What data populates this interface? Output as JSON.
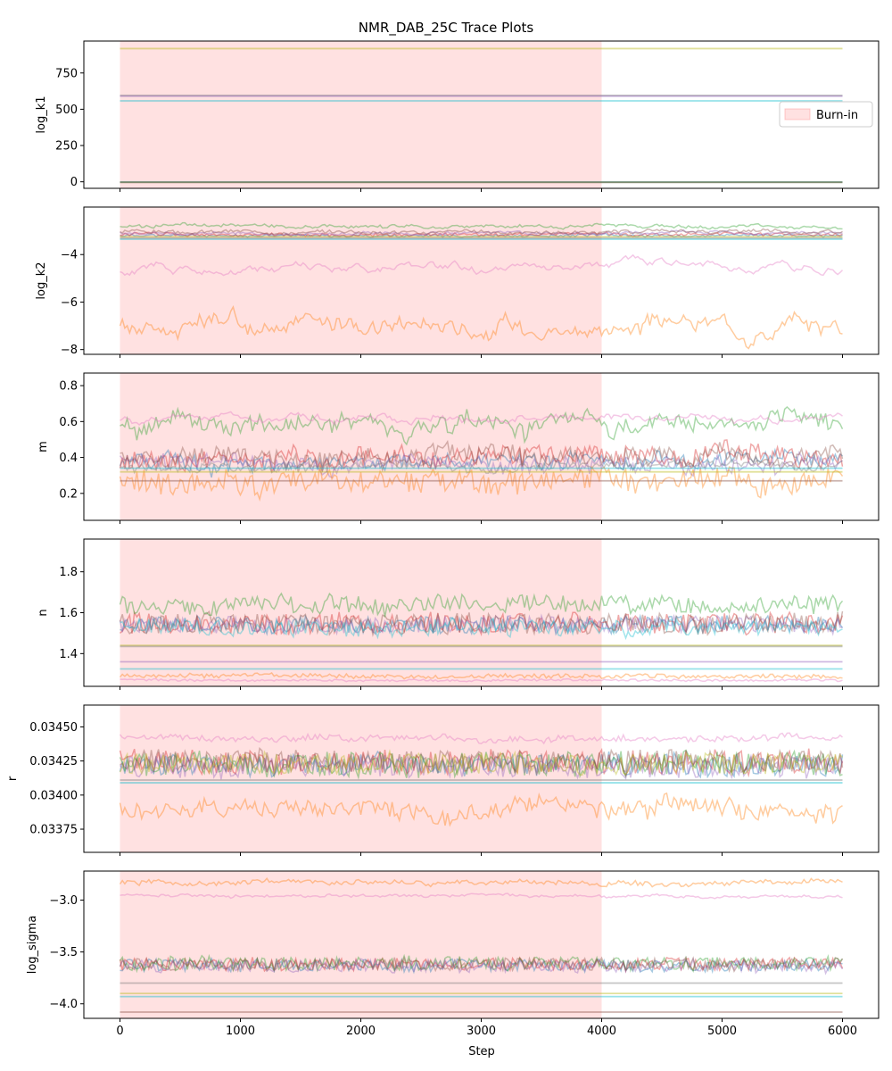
{
  "chart_data": {
    "type": "line",
    "title": "NMR_DAB_25C Trace Plots",
    "xlabel": "Step",
    "x_range": [
      0,
      6000
    ],
    "xlim": [
      -300,
      6300
    ],
    "x_ticks": [
      0,
      1000,
      2000,
      3000,
      4000,
      5000,
      6000
    ],
    "x_tick_labels": [
      "0",
      "1000",
      "2000",
      "3000",
      "4000",
      "5000",
      "6000"
    ],
    "burn_in": {
      "start": 0,
      "end": 4000,
      "label": "Burn-in",
      "color": "#ff9a9a"
    },
    "legend": {
      "placement": "right-center of first panel",
      "entries": [
        "Burn-in"
      ]
    },
    "walker_colors": [
      "#1f77b4",
      "#ff7f0e",
      "#2ca02c",
      "#d62728",
      "#9467bd",
      "#8c564b",
      "#e377c2",
      "#7f7f7f",
      "#bcbd22",
      "#17becf"
    ],
    "panels": [
      {
        "name": "log_k1",
        "ylabel": "log_k1",
        "ylim": [
          -45,
          970
        ],
        "y_ticks": [
          0,
          250,
          500,
          750
        ],
        "y_tick_labels": [
          "0",
          "250",
          "500",
          "750"
        ],
        "flat": [
          {
            "value": 918,
            "color": "#bcbd22"
          },
          {
            "value": 595,
            "color": "#7f7f7f"
          },
          {
            "value": 590,
            "color": "#9467bd"
          },
          {
            "value": 558,
            "color": "#17becf"
          },
          {
            "value": -2,
            "color": "#1f77b4"
          },
          {
            "value": -3,
            "color": "#2ca02c"
          },
          {
            "value": -4,
            "color": "#8c564b"
          }
        ],
        "noisy": []
      },
      {
        "name": "log_k2",
        "ylabel": "log_k2",
        "ylim": [
          -8.2,
          -2.0
        ],
        "y_ticks": [
          -8,
          -6,
          -4
        ],
        "y_tick_labels": [
          "−8",
          "−6",
          "−4"
        ],
        "flat": [
          {
            "value": -3.35,
            "color": "#17becf"
          },
          {
            "value": -3.3,
            "color": "#7f7f7f"
          },
          {
            "value": -3.25,
            "color": "#bcbd22"
          }
        ],
        "noisy": [
          {
            "color": "#1f77b4",
            "mean": -3.2,
            "amp": 0.05,
            "spread": 0.08,
            "seed": 11
          },
          {
            "color": "#d62728",
            "mean": -3.15,
            "amp": 0.06,
            "spread": 0.1,
            "seed": 12
          },
          {
            "color": "#9467bd",
            "mean": -3.1,
            "amp": 0.05,
            "spread": 0.1,
            "seed": 13
          },
          {
            "color": "#8c564b",
            "mean": -3.05,
            "amp": 0.06,
            "spread": 0.15,
            "seed": 14
          },
          {
            "color": "#2ca02c",
            "mean": -2.8,
            "amp": 0.05,
            "spread": 0.15,
            "seed": 15
          },
          {
            "color": "#e377c2",
            "mean": -4.6,
            "amp": 0.03,
            "spread": 0.6,
            "seed": 16
          },
          {
            "color": "#ff7f0e",
            "mean": -7.0,
            "amp": 0.2,
            "spread": 0.9,
            "seed": 17
          }
        ]
      },
      {
        "name": "m",
        "ylabel": "m",
        "ylim": [
          0.05,
          0.87
        ],
        "y_ticks": [
          0.2,
          0.4,
          0.6,
          0.8
        ],
        "y_tick_labels": [
          "0.2",
          "0.4",
          "0.6",
          "0.8"
        ],
        "flat": [
          {
            "value": 0.34,
            "color": "#17becf"
          },
          {
            "value": 0.32,
            "color": "#bcbd22"
          },
          {
            "value": 0.27,
            "color": "#8c564b"
          }
        ],
        "noisy": [
          {
            "color": "#1f77b4",
            "mean": 0.38,
            "amp": 0.04,
            "spread": 0.06,
            "seed": 21
          },
          {
            "color": "#d62728",
            "mean": 0.4,
            "amp": 0.05,
            "spread": 0.08,
            "seed": 22
          },
          {
            "color": "#9467bd",
            "mean": 0.37,
            "amp": 0.04,
            "spread": 0.06,
            "seed": 23
          },
          {
            "color": "#8c564b",
            "mean": 0.4,
            "amp": 0.05,
            "spread": 0.08,
            "seed": 24
          },
          {
            "color": "#7f7f7f",
            "mean": 0.35,
            "amp": 0.02,
            "spread": 0.03,
            "seed": 25
          },
          {
            "color": "#2ca02c",
            "mean": 0.6,
            "amp": 0.04,
            "spread": 0.1,
            "seed": 26
          },
          {
            "color": "#e377c2",
            "mean": 0.62,
            "amp": 0.01,
            "spread": 0.05,
            "seed": 27
          },
          {
            "color": "#ff7f0e",
            "mean": 0.27,
            "amp": 0.06,
            "spread": 0.08,
            "seed": 28
          }
        ]
      },
      {
        "name": "n",
        "ylabel": "n",
        "ylim": [
          1.24,
          1.96
        ],
        "y_ticks": [
          1.4,
          1.6,
          1.8
        ],
        "y_tick_labels": [
          "1.4",
          "1.6",
          "1.8"
        ],
        "flat": [
          {
            "value": 1.44,
            "color": "#bcbd22"
          },
          {
            "value": 1.435,
            "color": "#7f7f7f"
          },
          {
            "value": 1.36,
            "color": "#9467bd"
          },
          {
            "value": 1.325,
            "color": "#17becf"
          }
        ],
        "noisy": [
          {
            "color": "#1f77b4",
            "mean": 1.54,
            "amp": 0.04,
            "spread": 0.02,
            "seed": 31
          },
          {
            "color": "#d62728",
            "mean": 1.55,
            "amp": 0.05,
            "spread": 0.02,
            "seed": 32
          },
          {
            "color": "#9467bd",
            "mean": 1.54,
            "amp": 0.04,
            "spread": 0.02,
            "seed": 33
          },
          {
            "color": "#8c564b",
            "mean": 1.55,
            "amp": 0.05,
            "spread": 0.02,
            "seed": 34
          },
          {
            "color": "#2ca02c",
            "mean": 1.64,
            "amp": 0.04,
            "spread": 0.04,
            "seed": 35
          },
          {
            "color": "#ff7f0e",
            "mean": 1.29,
            "amp": 0.01,
            "spread": 0.01,
            "seed": 36
          },
          {
            "color": "#e377c2",
            "mean": 1.27,
            "amp": 0.005,
            "spread": 0.005,
            "seed": 37
          },
          {
            "color": "#17becf",
            "mean": 1.53,
            "amp": 0.04,
            "spread": 0.02,
            "seed": 38
          }
        ]
      },
      {
        "name": "r",
        "ylabel": "r",
        "ylim": [
          0.03358,
          0.03466
        ],
        "y_ticks": [
          0.03375,
          0.034,
          0.03425,
          0.0345
        ],
        "y_tick_labels": [
          "0.03375",
          "0.03400",
          "0.03425",
          "0.03450"
        ],
        "flat": [
          {
            "value": 0.03409,
            "color": "#17becf"
          },
          {
            "value": 0.03411,
            "color": "#7f7f7f"
          }
        ],
        "noisy": [
          {
            "color": "#1f77b4",
            "mean": 0.03422,
            "amp": 8e-05,
            "spread": 3e-05,
            "seed": 41
          },
          {
            "color": "#d62728",
            "mean": 0.03424,
            "amp": 9e-05,
            "spread": 3e-05,
            "seed": 42
          },
          {
            "color": "#2ca02c",
            "mean": 0.03423,
            "amp": 9e-05,
            "spread": 3e-05,
            "seed": 43
          },
          {
            "color": "#9467bd",
            "mean": 0.03421,
            "amp": 8e-05,
            "spread": 3e-05,
            "seed": 44
          },
          {
            "color": "#8c564b",
            "mean": 0.03425,
            "amp": 8e-05,
            "spread": 3e-05,
            "seed": 45
          },
          {
            "color": "#bcbd22",
            "mean": 0.03423,
            "amp": 8e-05,
            "spread": 3e-05,
            "seed": 46
          },
          {
            "color": "#e377c2",
            "mean": 0.03442,
            "amp": 2e-05,
            "spread": 3e-05,
            "seed": 47
          },
          {
            "color": "#ff7f0e",
            "mean": 0.0339,
            "amp": 6e-05,
            "spread": 0.0001,
            "seed": 48
          }
        ]
      },
      {
        "name": "log_sigma",
        "ylabel": "log_sigma",
        "ylim": [
          -4.14,
          -2.72
        ],
        "y_ticks": [
          -4.0,
          -3.5,
          -3.0
        ],
        "y_tick_labels": [
          "−4.0",
          "−3.5",
          "−3.0"
        ],
        "flat": [
          {
            "value": -3.8,
            "color": "#7f7f7f"
          },
          {
            "value": -3.9,
            "color": "#bcbd22"
          },
          {
            "value": -3.93,
            "color": "#17becf"
          },
          {
            "value": -4.08,
            "color": "#8c564b"
          }
        ],
        "noisy": [
          {
            "color": "#1f77b4",
            "mean": -3.63,
            "amp": 0.06,
            "spread": 0.02,
            "seed": 51
          },
          {
            "color": "#d62728",
            "mean": -3.62,
            "amp": 0.06,
            "spread": 0.02,
            "seed": 52
          },
          {
            "color": "#2ca02c",
            "mean": -3.61,
            "amp": 0.07,
            "spread": 0.02,
            "seed": 53
          },
          {
            "color": "#9467bd",
            "mean": -3.64,
            "amp": 0.06,
            "spread": 0.02,
            "seed": 54
          },
          {
            "color": "#8c564b",
            "mean": -3.62,
            "amp": 0.06,
            "spread": 0.02,
            "seed": 55
          },
          {
            "color": "#ff7f0e",
            "mean": -2.83,
            "amp": 0.02,
            "spread": 0.04,
            "seed": 56
          },
          {
            "color": "#e377c2",
            "mean": -2.96,
            "amp": 0.01,
            "spread": 0.03,
            "seed": 57
          }
        ]
      }
    ]
  }
}
